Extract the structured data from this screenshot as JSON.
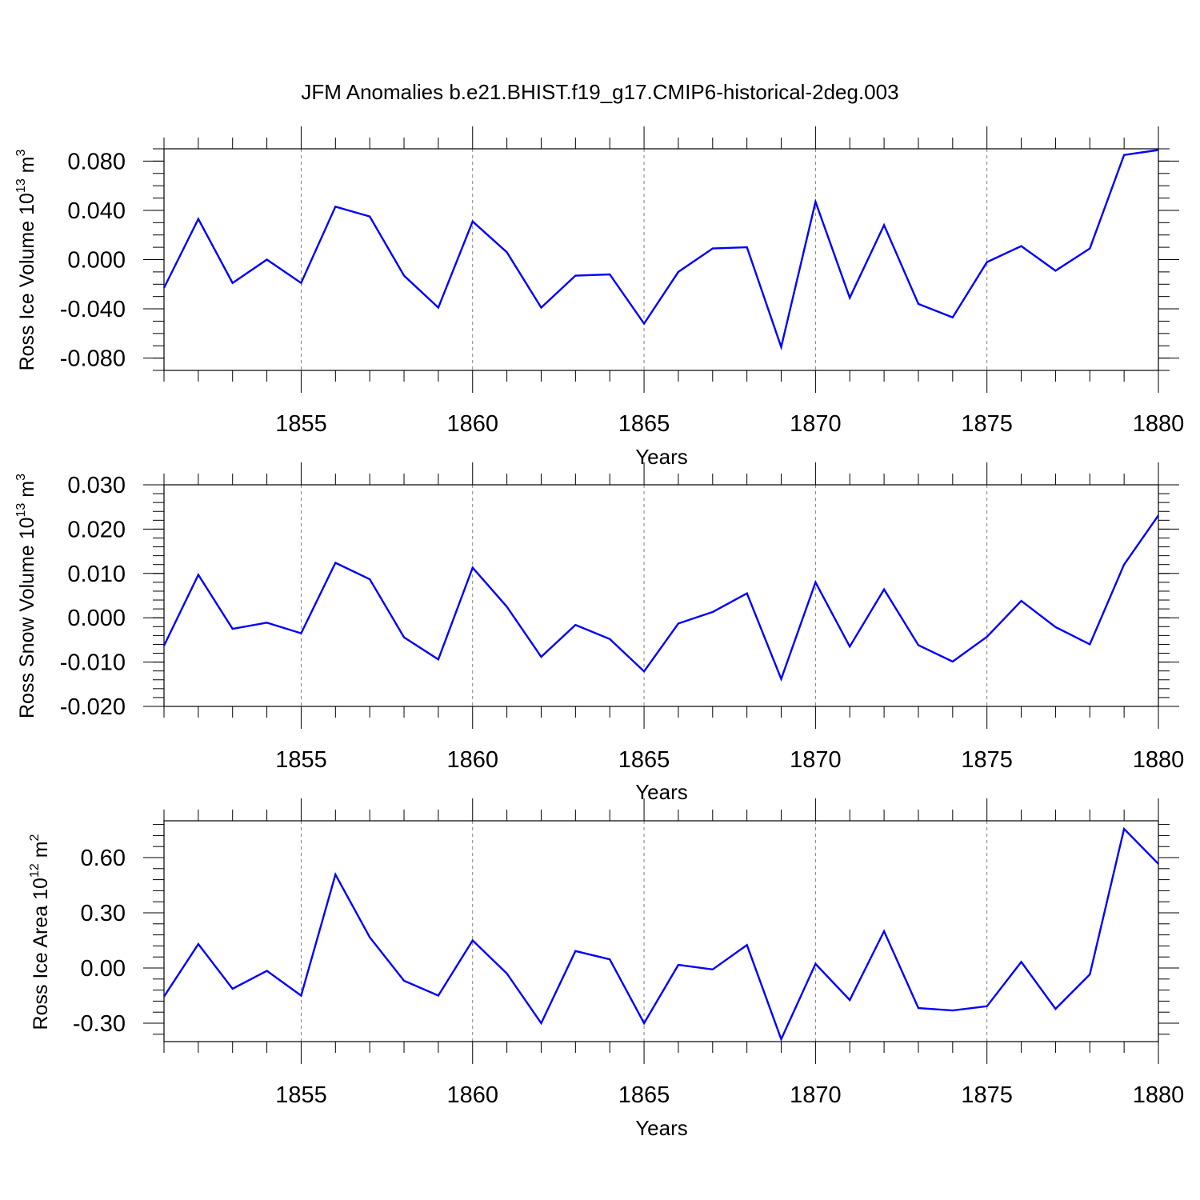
{
  "title": "JFM Anomalies b.e21.BHIST.f19_g17.CMIP6-historical-2deg.003",
  "colors": {
    "line": "#0000ff",
    "axis": "#000000",
    "grid": "#808080",
    "background": "#ffffff"
  },
  "chart_data": [
    {
      "type": "line",
      "ylabel": "Ross Ice Volume",
      "yunit_base": "10",
      "yunit_exp": "13",
      "yunit_sym": "m",
      "yunit_sym_exp": "3",
      "xlabel": "Years",
      "xlim": [
        1851,
        1880
      ],
      "ylim": [
        -0.09,
        0.09
      ],
      "xticks": [
        1855,
        1860,
        1865,
        1870,
        1875,
        1880
      ],
      "yticks": [
        -0.08,
        -0.04,
        0.0,
        0.04,
        0.08
      ],
      "ytick_labels": [
        "-0.080",
        "-0.040",
        "0.000",
        "0.040",
        "0.080"
      ],
      "yminor_step": 0.01,
      "grid": "vertical dashed at major x ticks",
      "series": [
        {
          "x": [
            1851,
            1852,
            1853,
            1854,
            1855,
            1856,
            1857,
            1858,
            1859,
            1860,
            1861,
            1862,
            1863,
            1864,
            1865,
            1866,
            1867,
            1868,
            1869,
            1870,
            1871,
            1872,
            1873,
            1874,
            1875,
            1876,
            1877,
            1878,
            1879,
            1880
          ],
          "values": [
            -0.023,
            0.033,
            -0.019,
            0.0,
            -0.019,
            0.043,
            0.035,
            -0.013,
            -0.039,
            0.031,
            0.006,
            -0.039,
            -0.013,
            -0.012,
            -0.052,
            -0.01,
            0.009,
            0.01,
            -0.071,
            0.047,
            -0.031,
            0.028,
            -0.036,
            -0.047,
            -0.002,
            0.011,
            -0.009,
            0.009,
            0.085,
            0.089
          ]
        }
      ]
    },
    {
      "type": "line",
      "ylabel": "Ross Snow Volume",
      "yunit_base": "10",
      "yunit_exp": "13",
      "yunit_sym": "m",
      "yunit_sym_exp": "3",
      "xlabel": "Years",
      "xlim": [
        1851,
        1880
      ],
      "ylim": [
        -0.02,
        0.03
      ],
      "xticks": [
        1855,
        1860,
        1865,
        1870,
        1875,
        1880
      ],
      "yticks": [
        -0.02,
        -0.01,
        0.0,
        0.01,
        0.02,
        0.03
      ],
      "ytick_labels": [
        "-0.020",
        "-0.010",
        "0.000",
        "0.010",
        "0.020",
        "0.030"
      ],
      "yminor_step": 0.002,
      "grid": "vertical dashed at major x ticks",
      "series": [
        {
          "x": [
            1851,
            1852,
            1853,
            1854,
            1855,
            1856,
            1857,
            1858,
            1859,
            1860,
            1861,
            1862,
            1863,
            1864,
            1865,
            1866,
            1867,
            1868,
            1869,
            1870,
            1871,
            1872,
            1873,
            1874,
            1875,
            1876,
            1877,
            1878,
            1879,
            1880
          ],
          "values": [
            -0.0063,
            0.0097,
            -0.0025,
            -0.0011,
            -0.0035,
            0.0124,
            0.0087,
            -0.0044,
            -0.0094,
            0.0113,
            0.0025,
            -0.0088,
            -0.0016,
            -0.0048,
            -0.0121,
            -0.0013,
            0.0013,
            0.0055,
            -0.0138,
            0.008,
            -0.0065,
            0.0064,
            -0.0062,
            -0.0099,
            -0.0043,
            0.0038,
            -0.0021,
            -0.006,
            0.012,
            0.0231
          ]
        }
      ]
    },
    {
      "type": "line",
      "ylabel": "Ross Ice Area",
      "yunit_base": "10",
      "yunit_exp": "12",
      "yunit_sym": "m",
      "yunit_sym_exp": "2",
      "xlabel": "Years",
      "xlim": [
        1851,
        1880
      ],
      "ylim": [
        -0.4,
        0.8
      ],
      "xticks": [
        1855,
        1860,
        1865,
        1870,
        1875,
        1880
      ],
      "yticks": [
        -0.3,
        0.0,
        0.3,
        0.6
      ],
      "ytick_labels": [
        "-0.30",
        "0.00",
        "0.30",
        "0.60"
      ],
      "yminor_step": 0.06,
      "grid": "vertical dashed at major x ticks",
      "series": [
        {
          "x": [
            1851,
            1852,
            1853,
            1854,
            1855,
            1856,
            1857,
            1858,
            1859,
            1860,
            1861,
            1862,
            1863,
            1864,
            1865,
            1866,
            1867,
            1868,
            1869,
            1870,
            1871,
            1872,
            1873,
            1874,
            1875,
            1876,
            1877,
            1878,
            1879,
            1880
          ],
          "values": [
            -0.155,
            0.13,
            -0.113,
            -0.015,
            -0.15,
            0.508,
            0.167,
            -0.069,
            -0.15,
            0.15,
            -0.03,
            -0.3,
            0.092,
            0.047,
            -0.3,
            0.017,
            -0.008,
            0.125,
            -0.387,
            0.022,
            -0.174,
            0.2,
            -0.218,
            -0.231,
            -0.208,
            0.033,
            -0.222,
            -0.035,
            0.756,
            0.566
          ]
        }
      ]
    }
  ]
}
